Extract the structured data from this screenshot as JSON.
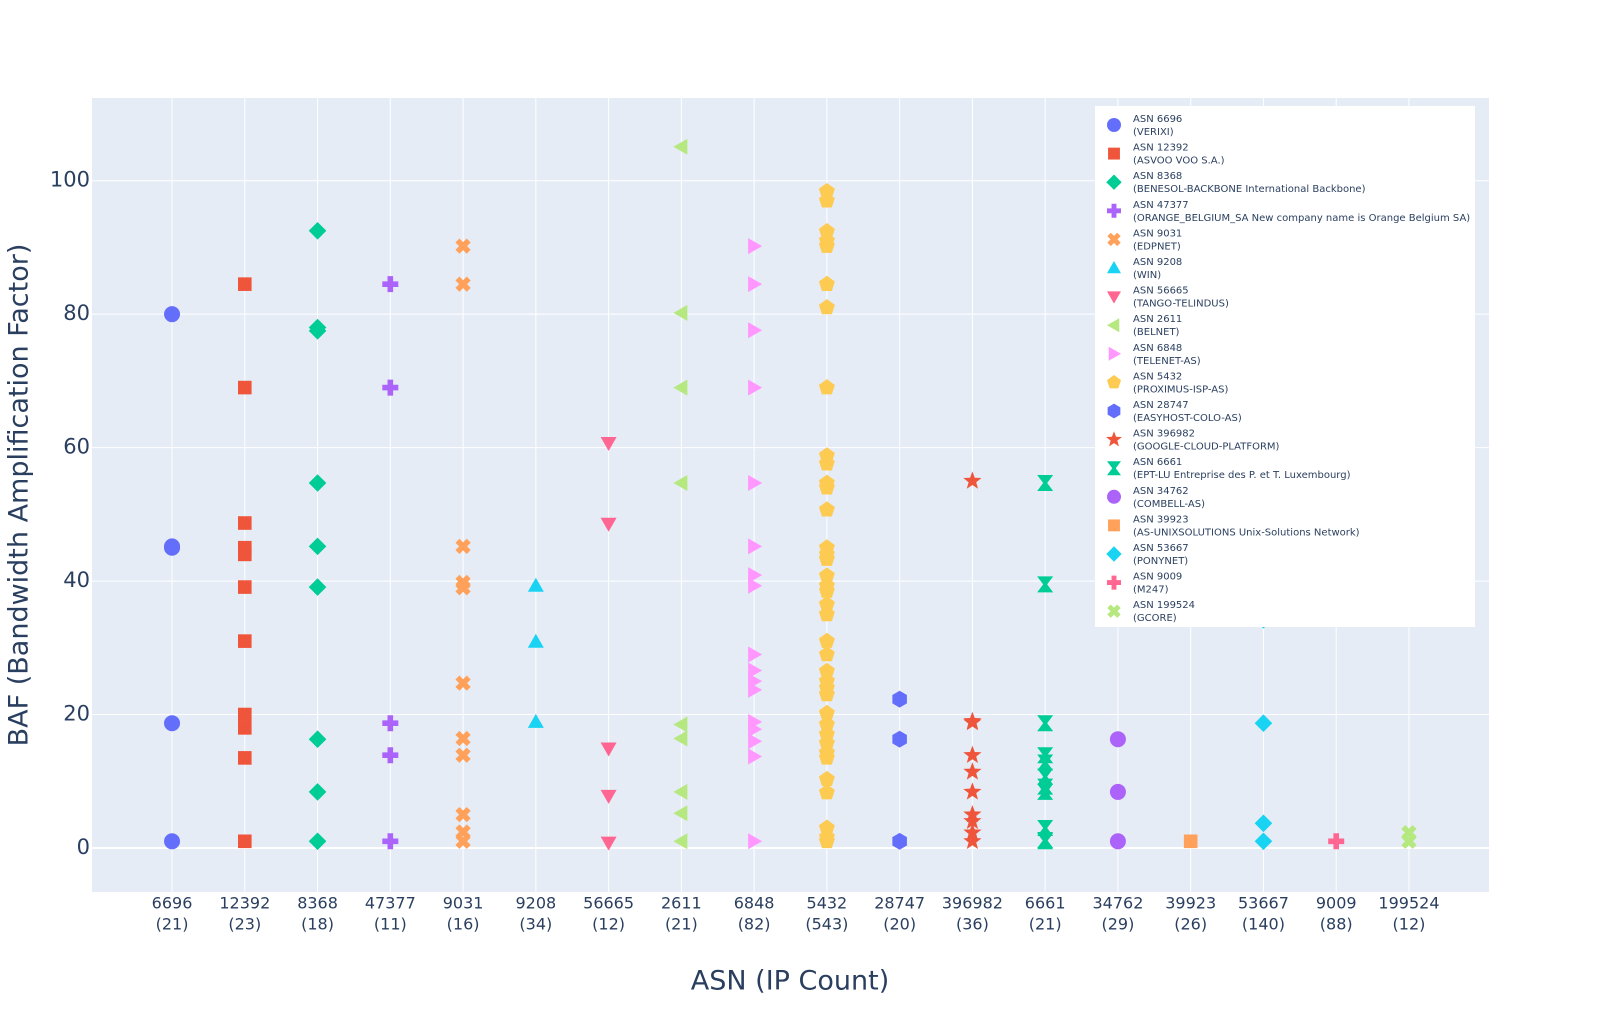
{
  "chart_data": {
    "type": "scatter",
    "x_title": "ASN (IP Count)",
    "y_title": "BAF (Bandwidth Amplification Factor)",
    "ylim": [
      -6.6,
      112.4
    ],
    "yticks": [
      0,
      20,
      40,
      60,
      80,
      100
    ],
    "grid": true,
    "legend_position": "top-right",
    "categories": [
      [
        "6696",
        "(21)"
      ],
      [
        "12392",
        "(23)"
      ],
      [
        "8368",
        "(18)"
      ],
      [
        "47377",
        "(11)"
      ],
      [
        "9031",
        "(16)"
      ],
      [
        "9208",
        "(34)"
      ],
      [
        "56665",
        "(12)"
      ],
      [
        "2611",
        "(21)"
      ],
      [
        "6848",
        "(82)"
      ],
      [
        "5432",
        "(543)"
      ],
      [
        "28747",
        "(20)"
      ],
      [
        "396982",
        "(36)"
      ],
      [
        "6661",
        "(21)"
      ],
      [
        "34762",
        "(29)"
      ],
      [
        "39923",
        "(26)"
      ],
      [
        "53667",
        "(140)"
      ],
      [
        "9009",
        "(88)"
      ],
      [
        "199524",
        "(12)"
      ]
    ],
    "series": [
      {
        "name": "ASN 6696",
        "org": "(VERIXI)",
        "symbol": "circle",
        "color": "#636efa",
        "values": [
          80,
          45.2,
          45,
          18.7,
          1
        ]
      },
      {
        "name": "ASN 12392",
        "org": "(ASVOO VOO S.A.)",
        "symbol": "square",
        "color": "#ef553b",
        "values": [
          84.5,
          69,
          48.7,
          45,
          44,
          39.1,
          31,
          20,
          18,
          13.5,
          1
        ]
      },
      {
        "name": "ASN 8368",
        "org": "(BENESOL-BACKBONE International Backbone)",
        "symbol": "diamond",
        "color": "#00cc96",
        "values": [
          92.5,
          78,
          77.5,
          54.7,
          45.2,
          39.1,
          16.3,
          8.4,
          1
        ]
      },
      {
        "name": "ASN 47377",
        "org": "(ORANGE_BELGIUM_SA New company name is Orange Belgium SA)",
        "symbol": "cross",
        "color": "#ab63fa",
        "values": [
          84.5,
          69,
          18.7,
          13.9,
          1
        ]
      },
      {
        "name": "ASN 9031",
        "org": "(EDPNET)",
        "symbol": "x",
        "color": "#ffa15a",
        "values": [
          90.2,
          84.5,
          45.2,
          39.8,
          39,
          24.7,
          16.4,
          13.9,
          5,
          2.4,
          1
        ]
      },
      {
        "name": "ASN 9208",
        "org": "(WIN)",
        "symbol": "triangle-up",
        "color": "#19d3f3",
        "values": [
          39.3,
          30.9,
          18.9
        ]
      },
      {
        "name": "ASN 56665",
        "org": "(TANGO-TELINDUS)",
        "symbol": "triangle-down",
        "color": "#ff6692",
        "values": [
          60.7,
          48.6,
          14.9,
          7.8,
          0.8
        ]
      },
      {
        "name": "ASN 2611",
        "org": "(BELNET)",
        "symbol": "triangle-left",
        "color": "#b6e880",
        "values": [
          105.1,
          80.2,
          69,
          54.7,
          18.5,
          16.4,
          8.4,
          5.2,
          1
        ]
      },
      {
        "name": "ASN 6848",
        "org": "(TELENET-AS)",
        "symbol": "triangle-right",
        "color": "#ff97ff",
        "values": [
          90.2,
          84.5,
          77.6,
          69,
          54.7,
          45.2,
          40.9,
          39.3,
          29,
          26.6,
          25,
          23.7,
          18.9,
          17.8,
          16,
          13.7,
          1
        ]
      },
      {
        "name": "ASN 5432",
        "org": "(PROXIMUS-ISP-AS)",
        "symbol": "pentagon",
        "color": "#fecb52",
        "values": [
          98.4,
          97,
          92.4,
          91,
          90.2,
          84.5,
          81,
          69,
          58.8,
          57.6,
          54.7,
          54,
          50.7,
          45,
          44,
          43.3,
          40.8,
          39.3,
          38.5,
          36.5,
          35,
          31,
          29,
          26.5,
          25,
          24,
          23,
          20.2,
          18.5,
          17,
          15.7,
          14.3,
          13.5,
          10.3,
          8.3,
          3,
          1.6,
          1
        ]
      },
      {
        "name": "ASN 28747",
        "org": "(EASYHOST-COLO-AS)",
        "symbol": "hexagon",
        "color": "#636efa",
        "values": [
          22.3,
          16.3,
          1
        ]
      },
      {
        "name": "ASN 396982",
        "org": "(GOOGLE-CLOUD-PLATFORM)",
        "symbol": "star",
        "color": "#ef553b",
        "values": [
          55,
          19,
          18.8,
          13.9,
          11.4,
          8.4,
          5,
          4,
          2.3,
          1
        ]
      },
      {
        "name": "ASN 6661",
        "org": "(EPT-LU Entreprise des P. et T. Luxembourg)",
        "symbol": "hourglass",
        "color": "#00cc96",
        "values": [
          54.7,
          39.5,
          18.7,
          13.9,
          12.8,
          10.7,
          9.2,
          8.4,
          3,
          1.2,
          1
        ]
      },
      {
        "name": "ASN 34762",
        "org": "(COMBELL-AS)",
        "symbol": "circle",
        "color": "#ab63fa",
        "values": [
          16.3,
          8.4,
          1
        ]
      },
      {
        "name": "ASN 39923",
        "org": "(AS-UNIXSOLUTIONS Unix-Solutions Network)",
        "symbol": "square",
        "color": "#ffa15a",
        "values": [
          1
        ]
      },
      {
        "name": "ASN 53667",
        "org": "(PONYNET)",
        "symbol": "diamond",
        "color": "#19d3f3",
        "values": [
          34.2,
          18.7,
          3.7,
          1
        ]
      },
      {
        "name": "ASN 9009",
        "org": "(M247)",
        "symbol": "cross",
        "color": "#ff6692",
        "values": [
          1
        ]
      },
      {
        "name": "ASN 199524",
        "org": "(GCORE)",
        "symbol": "x",
        "color": "#b6e880",
        "values": [
          2.3,
          1
        ]
      }
    ]
  }
}
